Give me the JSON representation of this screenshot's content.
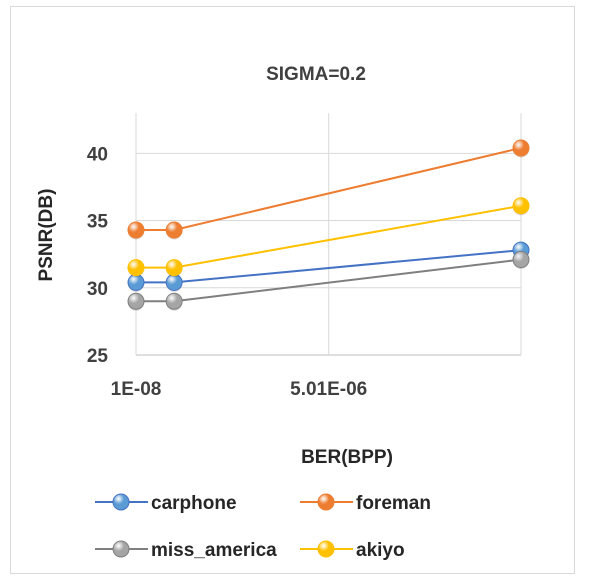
{
  "chart_data": {
    "type": "line",
    "title": "SIGMA=0.2",
    "xlabel": "BER(BPP)",
    "ylabel": "PSNR(DB)",
    "x": [
      1e-08,
      1e-06,
      1e-05
    ],
    "x_ticks": [
      {
        "value": 1e-08,
        "label": "1E-08"
      },
      {
        "value": 5.01e-06,
        "label": "5.01E-06"
      }
    ],
    "xlim": [
      1e-08,
      1e-05
    ],
    "ylim": [
      25,
      43
    ],
    "y_ticks": [
      25,
      30,
      35,
      40
    ],
    "grid": true,
    "legend_position": "bottom",
    "series": [
      {
        "name": "carphone",
        "values": [
          30.4,
          30.4,
          32.8
        ],
        "color": "#4472c4",
        "marker": "#5b9bd5"
      },
      {
        "name": "foreman",
        "values": [
          34.3,
          34.3,
          40.4
        ],
        "color": "#ed7d31",
        "marker": "#ed7d31"
      },
      {
        "name": "miss_america",
        "values": [
          29.0,
          29.0,
          32.1
        ],
        "color": "#7f7f7f",
        "marker": "#a5a5a5"
      },
      {
        "name": "akiyo",
        "values": [
          31.5,
          31.5,
          36.1
        ],
        "color": "#ffc000",
        "marker": "#ffc000"
      }
    ]
  }
}
